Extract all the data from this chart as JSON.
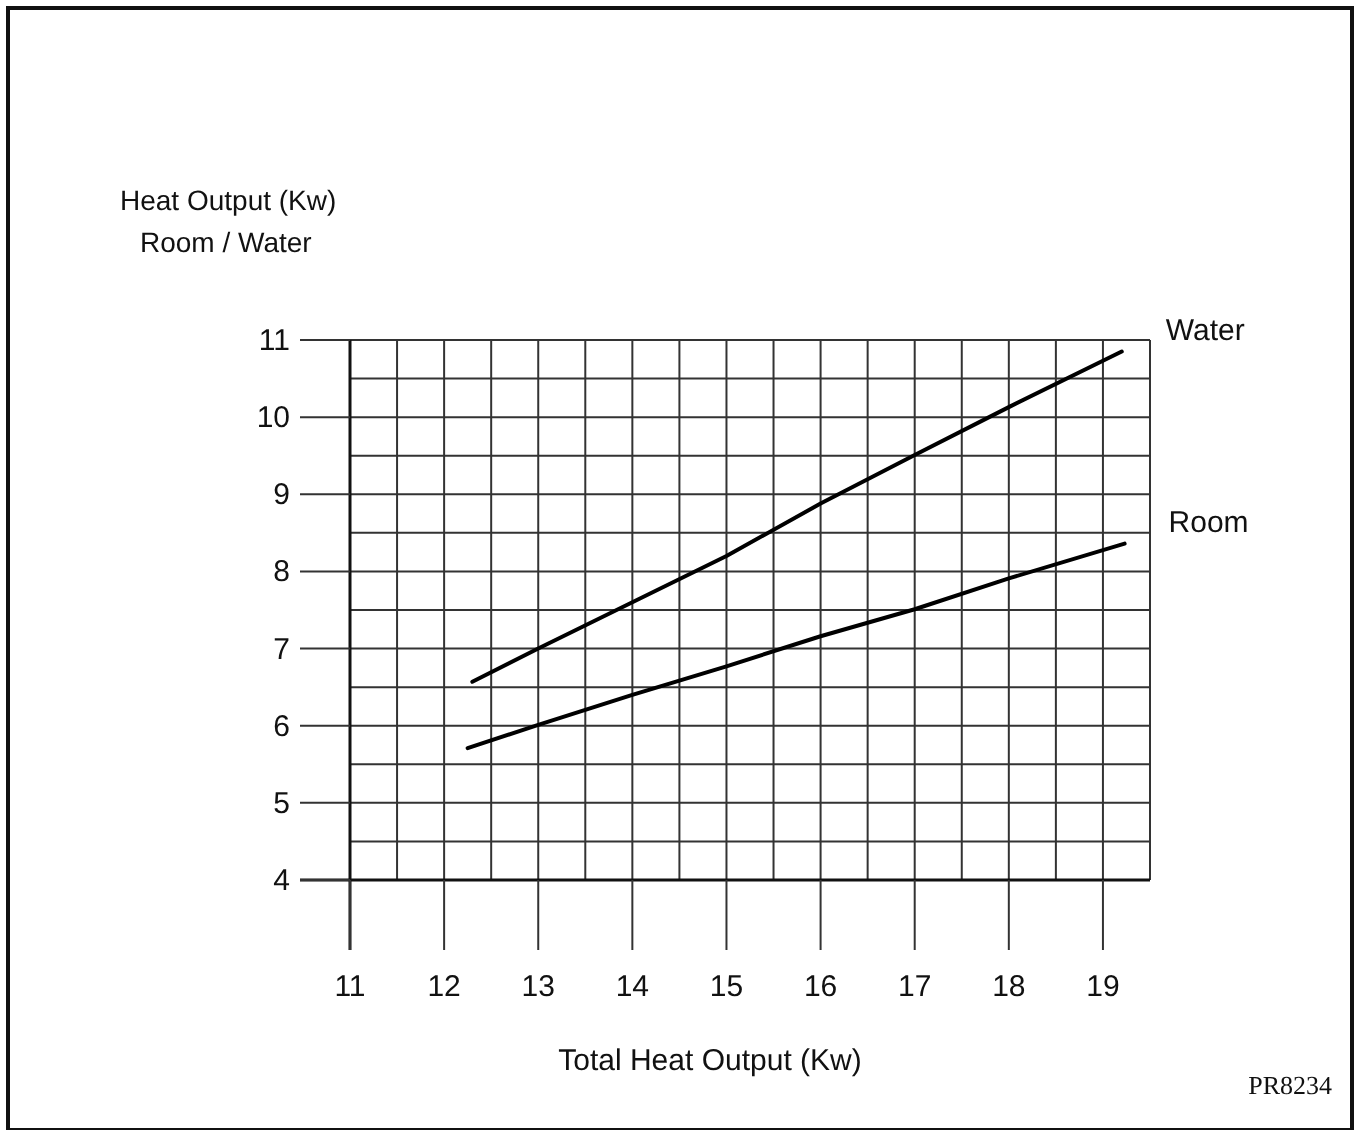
{
  "chart_data": {
    "type": "line",
    "ylabel": "Heat Output (Kw)\nRoom / Water",
    "xlabel": "Total Heat Output (Kw)",
    "xlim": [
      11,
      19.5
    ],
    "ylim": [
      4,
      11
    ],
    "xticks": [
      11,
      {
        "value": 11.5,
        "label": null
      },
      12,
      {
        "value": 12.5,
        "label": null
      },
      13,
      {
        "value": 13.5,
        "label": null
      },
      14,
      {
        "value": 14.5,
        "label": null
      },
      15,
      {
        "value": 15.5,
        "label": null
      },
      16,
      {
        "value": 16.5,
        "label": null
      },
      17,
      {
        "value": 17.5,
        "label": null
      },
      18,
      {
        "value": 18.5,
        "label": null
      },
      19,
      {
        "value": 19.5,
        "label": null
      }
    ],
    "yticks": [
      4,
      {
        "value": 4.5,
        "label": null
      },
      5,
      {
        "value": 5.5,
        "label": null
      },
      6,
      {
        "value": 6.5,
        "label": null
      },
      7,
      {
        "value": 7.5,
        "label": null
      },
      8,
      {
        "value": 8.5,
        "label": null
      },
      9,
      {
        "value": 9.5,
        "label": null
      },
      10,
      {
        "value": 10.5,
        "label": null
      },
      11
    ],
    "grid": true,
    "marker": "none",
    "line_style": "solid",
    "series": [
      {
        "name": "Water",
        "color": "#000000",
        "x": [
          12.3,
          13,
          14,
          15,
          16,
          17,
          18,
          19.2
        ],
        "values": [
          6.57,
          7.0,
          7.6,
          8.2,
          8.88,
          9.51,
          10.13,
          10.85
        ]
      },
      {
        "name": "Room",
        "color": "#000000",
        "x": [
          12.25,
          13,
          14,
          15,
          16,
          17,
          18,
          19.23
        ],
        "values": [
          5.71,
          6.01,
          6.4,
          6.77,
          7.16,
          7.51,
          7.91,
          8.36
        ]
      }
    ],
    "annotations": [
      "PR8234"
    ]
  }
}
